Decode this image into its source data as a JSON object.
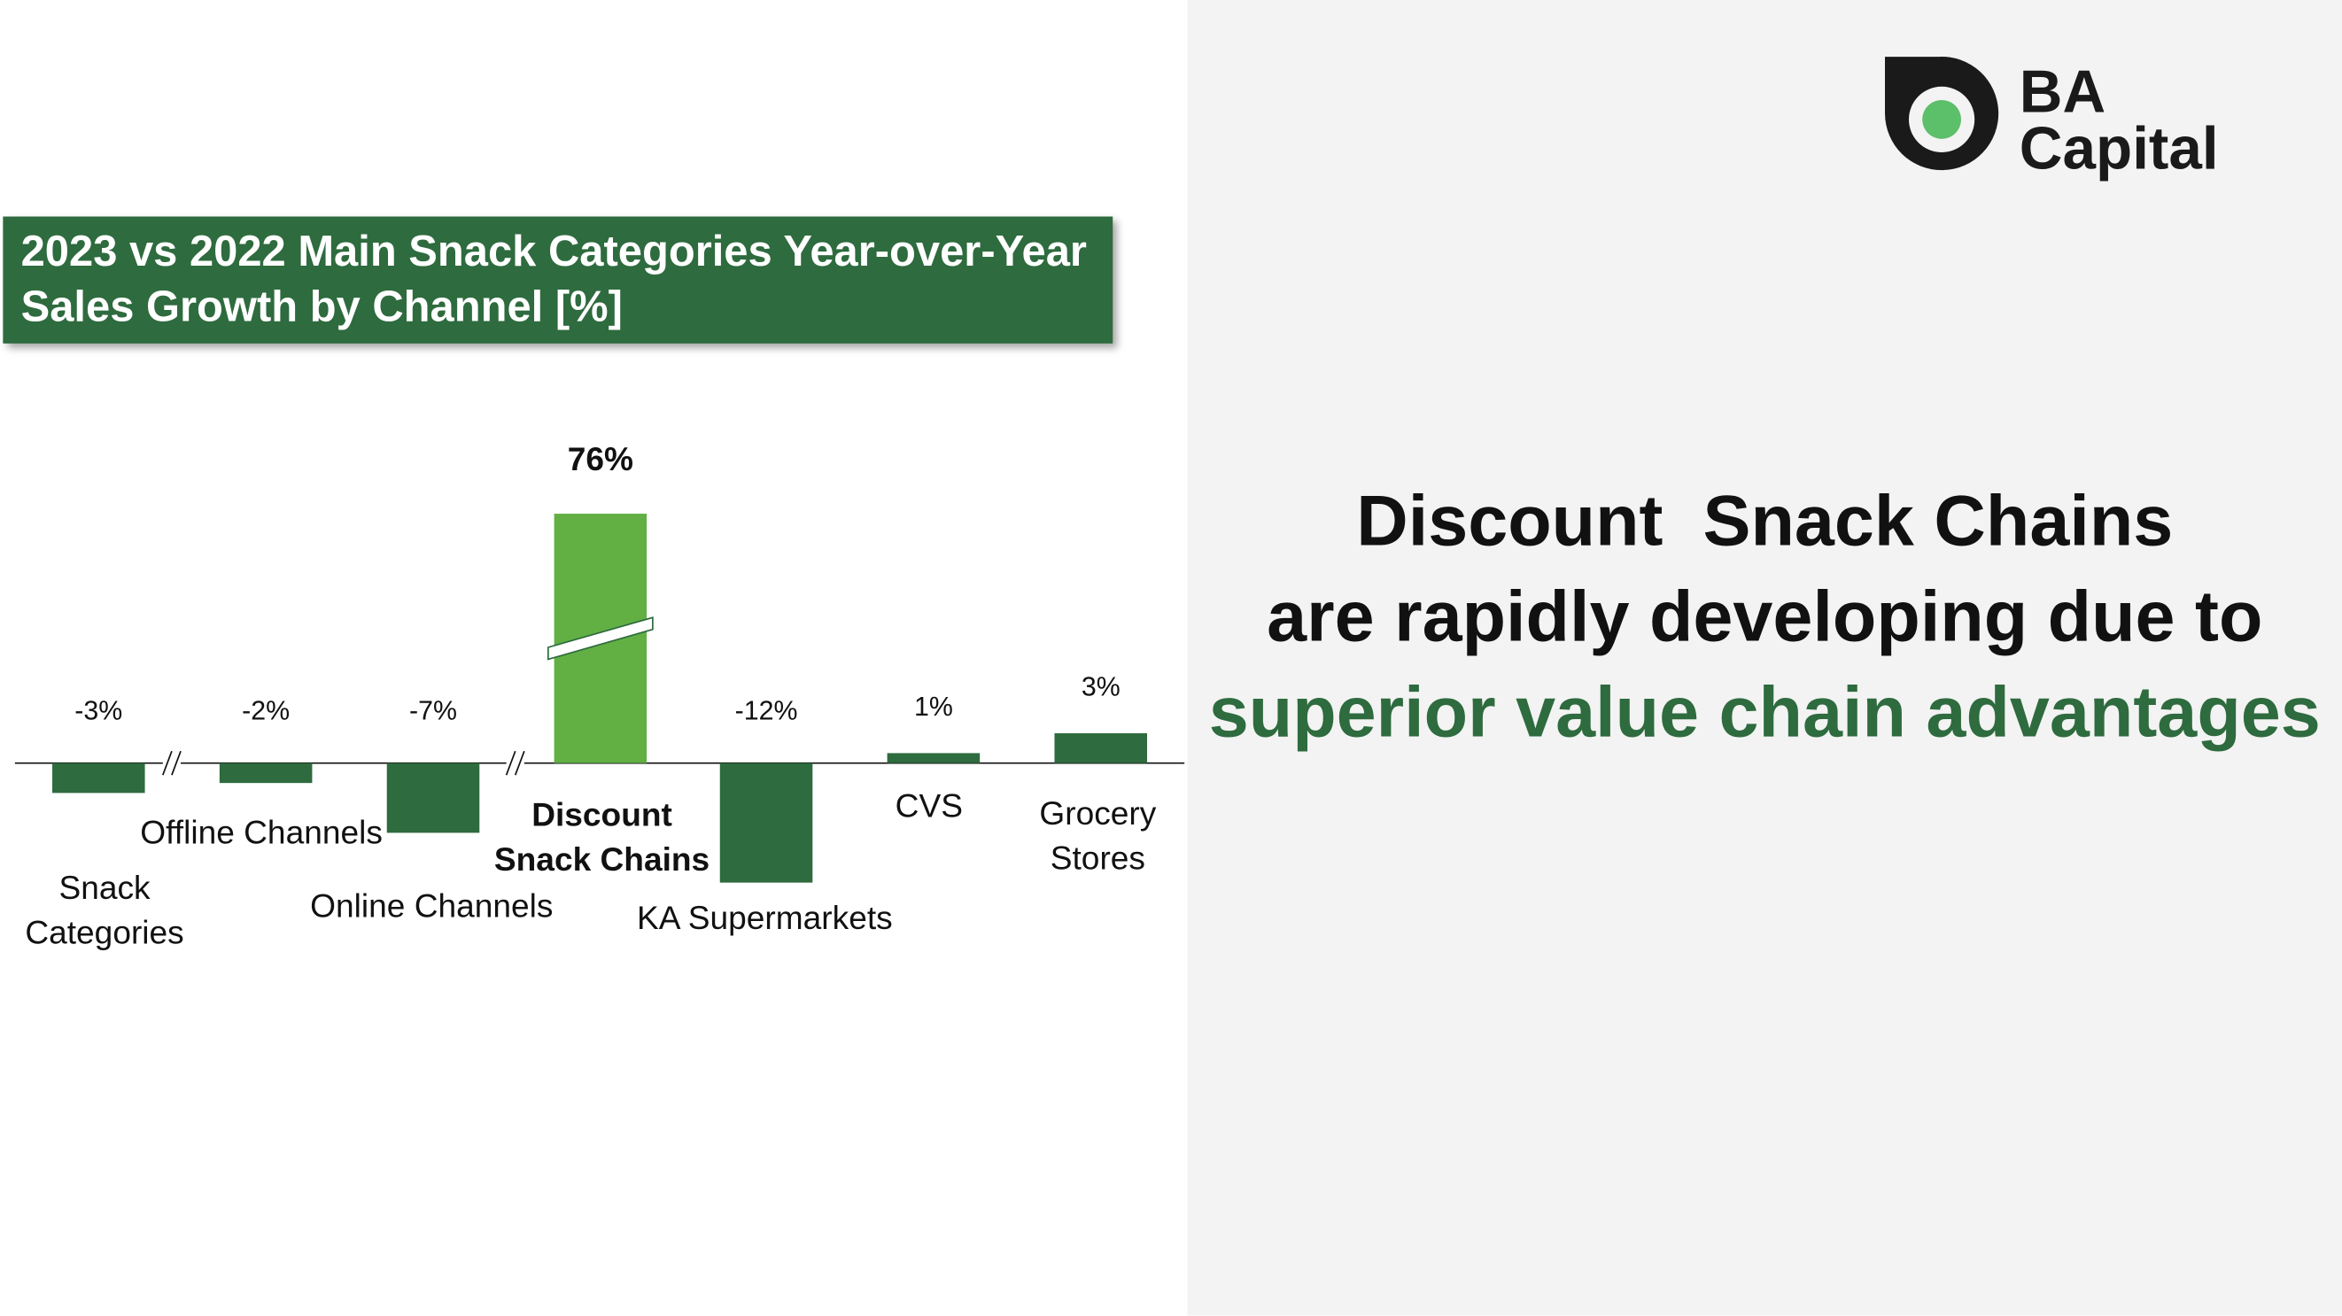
{
  "chart_data": {
    "type": "bar",
    "title": "2023 vs 2022 Main Snack Categories Year-over-Year Sales Growth by Channel [%]",
    "categories": [
      "Snack Categories",
      "Offline Channels",
      "Online Channels",
      "Discount Snack Chains",
      "KA Supermarkets",
      "CVS",
      "Grocery Stores"
    ],
    "values": [
      -3,
      -2,
      -7,
      76,
      -12,
      1,
      3
    ],
    "value_labels": [
      "-3%",
      "-2%",
      "-7%",
      "76%",
      "-12%",
      "1%",
      "3%"
    ],
    "color": "#2e6b3e",
    "colors": [
      "#2e6b3e",
      "#2e6b3e",
      "#2e6b3e",
      "#62b044",
      "#2e6b3e",
      "#2e6b3e",
      "#2e6b3e"
    ],
    "axis_break": true
  },
  "headline": {
    "lines": [
      "Discount  Snack Chains",
      "are rapidly developing due to",
      "superior value chain advantages"
    ]
  },
  "logo": {
    "lines": [
      "BA",
      "Capital"
    ]
  }
}
